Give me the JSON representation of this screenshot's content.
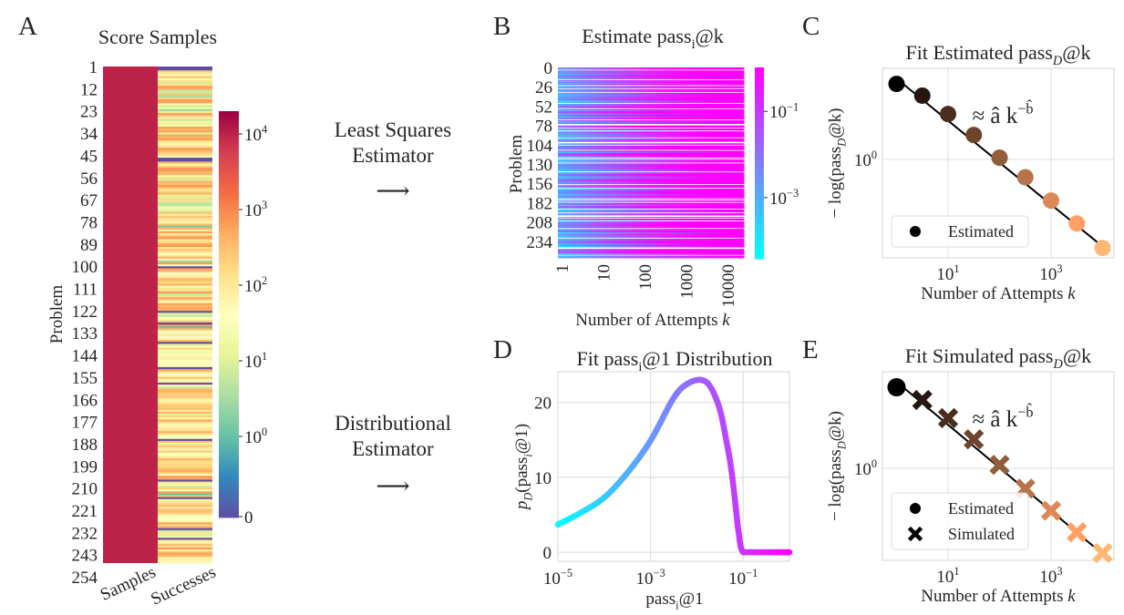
{
  "figure": {
    "panel_labels": [
      "A",
      "B",
      "C",
      "D",
      "E"
    ]
  },
  "middle": {
    "ls_line1": "Least Squares",
    "ls_line2": "Estimator",
    "ls_arrow": "⟶",
    "dist_line1": "Distributional",
    "dist_line2": "Estimator",
    "dist_arrow": "⟶"
  },
  "chart_data": [
    {
      "panel": "A",
      "type": "heatmap",
      "title": "Score Samples",
      "ylabel": "Problem",
      "ytick_labels": [
        "1",
        "12",
        "23",
        "34",
        "45",
        "56",
        "67",
        "78",
        "89",
        "100",
        "111",
        "122",
        "133",
        "144",
        "155",
        "166",
        "177",
        "188",
        "199",
        "210",
        "221",
        "232",
        "243",
        "254"
      ],
      "xtick_labels": [
        "Samples",
        "Successes"
      ],
      "num_problems": 256,
      "samples_per_problem": 10000,
      "colorbar": {
        "colormap": "Spectral_r",
        "scale": "symlog",
        "ticks": [
          {
            "value": 0,
            "base": "0",
            "exp": ""
          },
          {
            "value": 1,
            "base": "10",
            "exp": "0"
          },
          {
            "value": 10,
            "base": "10",
            "exp": "1"
          },
          {
            "value": 100,
            "base": "10",
            "exp": "2"
          },
          {
            "value": 1000,
            "base": "10",
            "exp": "3"
          },
          {
            "value": 10000,
            "base": "10",
            "exp": "4"
          }
        ],
        "colors": [
          "#5e4fa2",
          "#3288bd",
          "#66c2a5",
          "#abdda4",
          "#e6f598",
          "#ffffbf",
          "#fee08b",
          "#fdae61",
          "#f46d43",
          "#d53e4f",
          "#9e0142"
        ]
      }
    },
    {
      "panel": "B",
      "type": "heatmap",
      "title": {
        "main": "Estimate pass",
        "sub": "i",
        "tail": "@k"
      },
      "ylabel": "Problem",
      "xlabel": {
        "main": "Number of Attempts ",
        "var": "k"
      },
      "ytick_labels": [
        "0",
        "26",
        "52",
        "78",
        "104",
        "130",
        "156",
        "182",
        "208",
        "234"
      ],
      "xtick_labels": [
        "1",
        "10",
        "100",
        "1000",
        "10000"
      ],
      "xscale": "log",
      "colorbar": {
        "colormap": "cool",
        "scale": "log",
        "ticks": [
          {
            "value": 0.1,
            "base": "10",
            "exp": "−1"
          },
          {
            "value": 0.001,
            "base": "10",
            "exp": "−3"
          }
        ],
        "colors": {
          "low": "#00ffff",
          "high": "#ff00ff"
        }
      }
    },
    {
      "panel": "C",
      "type": "scatter",
      "title": {
        "main": "Fit Estimated pass",
        "sub": "D",
        "tail": "@k"
      },
      "xlabel": {
        "main": "Number of Attempts ",
        "var": "k"
      },
      "ylabel": {
        "main": "− log(pass",
        "sub": "D",
        "tail": "@k)"
      },
      "xscale": "log",
      "yscale": "log",
      "xticks": [
        {
          "value": 10,
          "base": "10",
          "exp": "1"
        },
        {
          "value": 1000,
          "base": "10",
          "exp": "3"
        }
      ],
      "yticks": [
        {
          "value": 1,
          "base": "10",
          "exp": "0"
        }
      ],
      "xlim": [
        0.54,
        16600
      ],
      "ylim": [
        0.19,
        4.64
      ],
      "grid": true,
      "legend_position": "lower-left",
      "annotation": {
        "main": "≈ â k",
        "sup": "−b̂"
      },
      "series": [
        {
          "name": "Estimated",
          "marker": "circle",
          "x": [
            1,
            3.16,
            10,
            31.6,
            100,
            316,
            1000,
            3162,
            10000
          ],
          "y": [
            3.57,
            2.93,
            2.15,
            1.51,
            1.03,
            0.74,
            0.5,
            0.34,
            0.225
          ]
        }
      ],
      "fit": {
        "a": 3.9,
        "b": 0.307,
        "color": "#000000"
      },
      "colormap": "copper"
    },
    {
      "panel": "D",
      "type": "line",
      "title": {
        "main": "Fit pass",
        "sub": "i",
        "tail": "@1 Distribution"
      },
      "xlabel": {
        "main": "pass",
        "sub": "i",
        "tail": "@1"
      },
      "ylabel": {
        "p": "p",
        "sub": "D",
        "tail": "(pass",
        "sub2": "i",
        "tail2": "@1)"
      },
      "xscale": "log",
      "xticks": [
        {
          "value": 1e-05,
          "base": "10",
          "exp": "−5"
        },
        {
          "value": 0.001,
          "base": "10",
          "exp": "−3"
        },
        {
          "value": 0.1,
          "base": "10",
          "exp": "−1"
        }
      ],
      "yticks": [
        {
          "value": 0,
          "label": "0"
        },
        {
          "value": 10,
          "label": "10"
        },
        {
          "value": 20,
          "label": "20"
        }
      ],
      "xlim": [
        1e-05,
        1
      ],
      "ylim": [
        -1.2,
        24.1
      ],
      "grid": true,
      "colormap": "cool",
      "x": [
        1e-05,
        3.16e-05,
        0.0001,
        0.000316,
        0.001,
        0.00316,
        0.0063,
        0.0126,
        0.02,
        0.0316,
        0.0446,
        0.056,
        0.0708,
        0.0794,
        0.1,
        0.2,
        0.5,
        1
      ],
      "y": [
        3.7,
        5.3,
        7.3,
        10.6,
        14.9,
        20.6,
        22.5,
        23.0,
        22.0,
        19.0,
        14.5,
        10.9,
        5.5,
        2.8,
        0,
        0,
        0,
        0
      ]
    },
    {
      "panel": "E",
      "type": "scatter",
      "title": {
        "main": "Fit Simulated pass",
        "sub": "D",
        "tail": "@k"
      },
      "xlabel": {
        "main": "Number of Attempts ",
        "var": "k"
      },
      "ylabel": {
        "main": "− log(pass",
        "sub": "D",
        "tail": "@k)"
      },
      "xscale": "log",
      "yscale": "log",
      "xticks": [
        {
          "value": 10,
          "base": "10",
          "exp": "1"
        },
        {
          "value": 1000,
          "base": "10",
          "exp": "3"
        }
      ],
      "yticks": [
        {
          "value": 1,
          "base": "10",
          "exp": "0"
        }
      ],
      "xlim": [
        0.54,
        16600
      ],
      "ylim": [
        0.21,
        5.1
      ],
      "grid": true,
      "legend_position": "lower-left",
      "annotation": {
        "main": "≈ â k",
        "sup": "−b̂"
      },
      "series": [
        {
          "name": "Estimated",
          "marker": "circle",
          "x": [
            1
          ],
          "y": [
            3.92
          ]
        },
        {
          "name": "Simulated",
          "marker": "x",
          "x": [
            3.16,
            10,
            31.6,
            100,
            316,
            1000,
            3162,
            10000
          ],
          "y": [
            3.16,
            2.33,
            1.63,
            1.06,
            0.71,
            0.49,
            0.34,
            0.24
          ]
        }
      ],
      "fit": {
        "a": 4.3,
        "b": 0.315,
        "color": "#000000"
      },
      "colormap": "copper"
    }
  ]
}
